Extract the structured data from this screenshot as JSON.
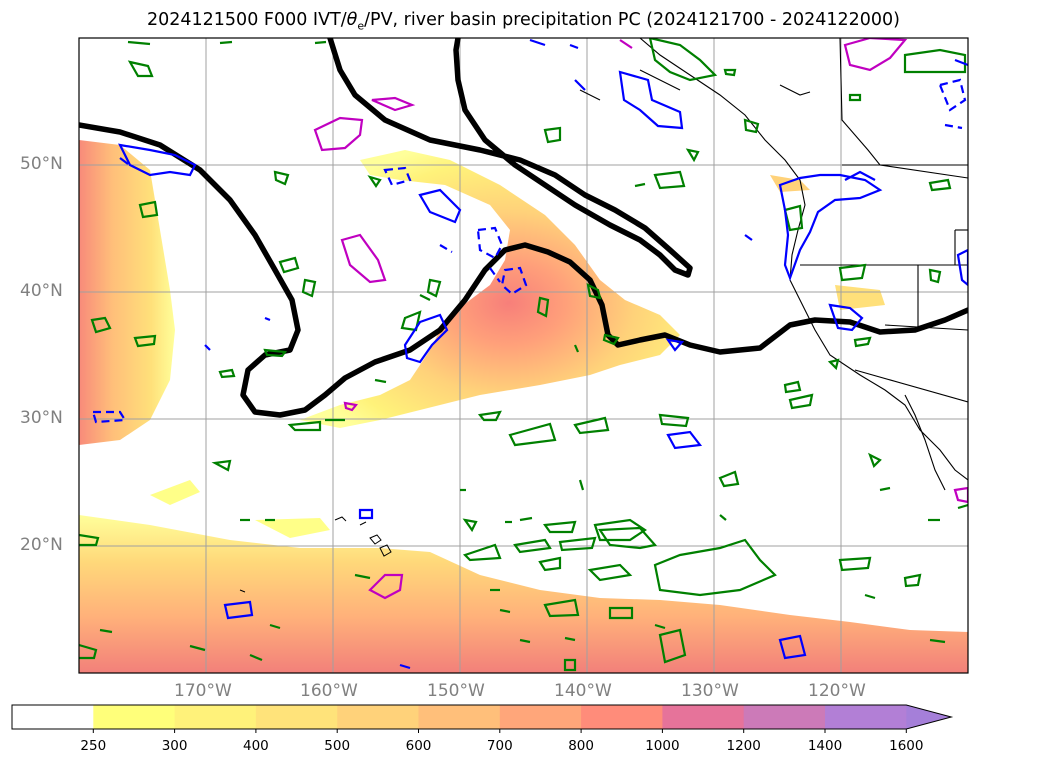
{
  "title": {
    "prefix": "2024121500 F000 IVT/",
    "theta": "θ",
    "theta_sub": "e",
    "suffix": "/PV, river basin precipitation PC (2024121700 - 2024122000)"
  },
  "map": {
    "projection": "plate-carree",
    "lon_range": [
      -180,
      -110
    ],
    "lat_range": [
      10,
      60
    ],
    "gridlines": true,
    "lat_labels": [
      "50°N",
      "40°N",
      "30°N",
      "20°N"
    ],
    "lon_labels": [
      "170°W",
      "160°W",
      "150°W",
      "140°W",
      "130°W",
      "120°W"
    ],
    "fields": [
      {
        "name": "IVT",
        "style": "filled contours",
        "palette": "yellow-orange-red-purple"
      },
      {
        "name": "theta_e / PV front",
        "style": "thick black contour"
      },
      {
        "name": "positive contour",
        "color": "#0000ff",
        "style": "solid"
      },
      {
        "name": "negative contour",
        "color": "#0000ff",
        "style": "dashed"
      },
      {
        "name": "precipitation contour",
        "color": "#008000"
      },
      {
        "name": "high contour",
        "color": "#c000c0"
      }
    ],
    "colors": {
      "ocean": "#ffffff",
      "coastline": "#000000",
      "grid": "#a0a0a0",
      "label": "#808080"
    }
  },
  "colorbar": {
    "ticks": [
      "250",
      "300",
      "400",
      "500",
      "600",
      "700",
      "800",
      "1000",
      "1200",
      "1400",
      "1600"
    ],
    "colors": [
      "#ffffff",
      "#ffff7a",
      "#fff27a",
      "#ffe37a",
      "#ffd27a",
      "#ffbf7a",
      "#ffa67a",
      "#ff8c7a",
      "#e6739a",
      "#cc7ab8",
      "#b27fd6",
      "#a57fd9"
    ],
    "extend": "max"
  }
}
